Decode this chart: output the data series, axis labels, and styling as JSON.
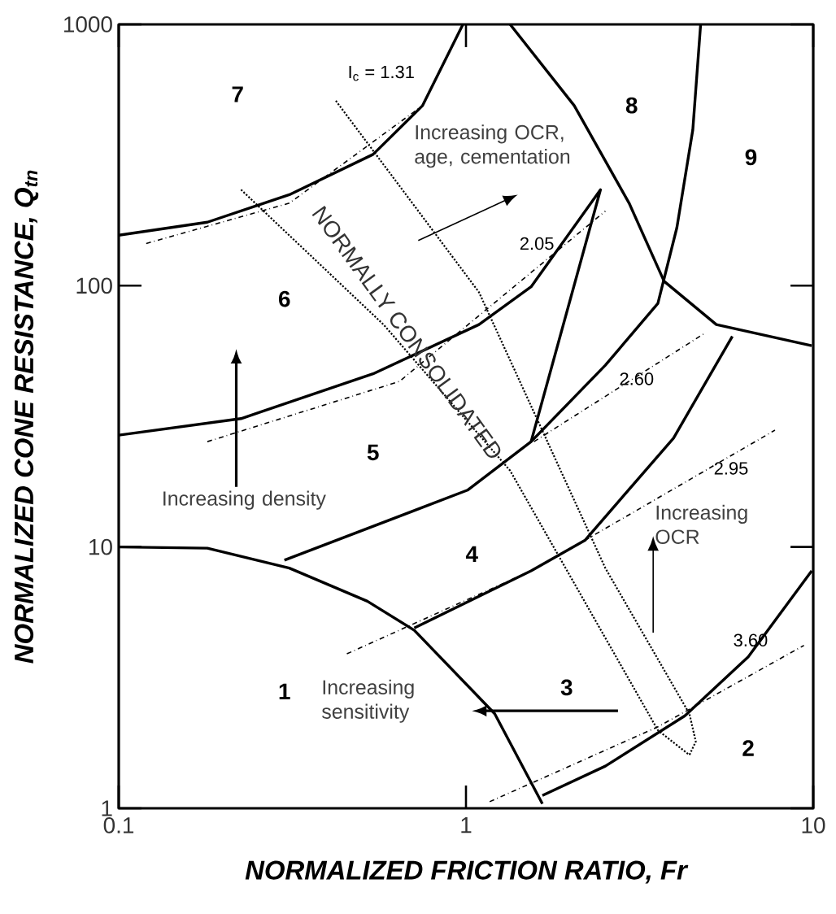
{
  "chart_data": {
    "type": "line",
    "log": "xy",
    "marker": "none",
    "xlabel": "NORMALIZED FRICTION RATIO, Fr",
    "ylabel": "NORMALIZED CONE RESISTANCE, Q$_{tn}$",
    "xlim": [
      0.1,
      10
    ],
    "ylim": [
      1,
      1000
    ],
    "xticks": [
      0.1,
      1,
      10
    ],
    "yticks": [
      1,
      10,
      100,
      1000
    ],
    "series": [
      {
        "color": "#000000",
        "line_style": "solid",
        "x": [
          0.1,
          0.18,
          0.31,
          0.52,
          0.71,
          1.21,
          1.66
        ],
        "values": [
          10,
          9.9,
          8.3,
          6.2,
          4.8,
          2.3,
          1.04
        ]
      },
      {
        "color": "#000000",
        "line_style": "solid",
        "x": [
          1.66,
          2.52,
          4.27,
          6.5,
          9.9
        ],
        "values": [
          1.12,
          1.45,
          2.26,
          3.8,
          8.1
        ]
      },
      {
        "color": "#000000",
        "line_style": "solid",
        "x": [
          0.1,
          0.18,
          0.31,
          0.54,
          0.75,
          0.98
        ],
        "values": [
          156,
          175,
          223,
          318,
          489,
          1000
        ]
      },
      {
        "color": "#000000",
        "line_style": "solid",
        "x": [
          0.1,
          0.225,
          0.54,
          1.09,
          1.54,
          2.44,
          1.54
        ],
        "values": [
          26.8,
          31,
          46,
          71,
          99,
          233,
          25.3
        ]
      },
      {
        "color": "#000000",
        "line_style": "solid",
        "x": [
          0.3,
          1.01,
          1.54,
          2.52,
          3.57,
          4.05,
          4.5,
          4.74
        ],
        "values": [
          8.9,
          16.5,
          25.3,
          49.6,
          85.5,
          167,
          395,
          1000
        ]
      },
      {
        "color": "#000000",
        "line_style": "solid",
        "x": [
          1.34,
          2.05,
          2.95,
          3.72,
          5.26,
          9.9
        ],
        "values": [
          1000,
          489,
          207,
          104,
          71,
          58.9
        ]
      },
      {
        "color": "#000000",
        "line_style": "solid",
        "x": [
          0.71,
          1.54,
          2.2,
          3.96,
          5.85
        ],
        "values": [
          4.9,
          8.1,
          10.6,
          26.1,
          64
        ]
      },
      {
        "color": "#000000",
        "line_style": "dashed",
        "x": [
          0.12,
          0.31,
          0.75
        ],
        "values": [
          145,
          207,
          489
        ]
      },
      {
        "color": "#000000",
        "line_style": "dashed",
        "x": [
          0.18,
          0.643,
          2.52
        ],
        "values": [
          25.3,
          43,
          193
        ]
      },
      {
        "color": "#000000",
        "line_style": "dashed",
        "x": [
          1.57,
          4.89
        ],
        "values": [
          25.3,
          66
        ]
      },
      {
        "color": "#000000",
        "line_style": "dashed",
        "x": [
          0.454,
          1.54,
          2.2,
          7.76
        ],
        "values": [
          3.9,
          8.1,
          10.6,
          28
        ]
      },
      {
        "color": "#000000",
        "line_style": "dashed",
        "x": [
          1.17,
          3.57,
          9.4
        ],
        "values": [
          1.06,
          2.05,
          4.2
        ]
      },
      {
        "color": "#000000",
        "line_style": "dotted",
        "x": [
          0.225,
          0.579,
          1.34,
          3.57,
          4.4
        ],
        "values": [
          233,
          71,
          19.6,
          1.99,
          1.6
        ]
      },
      {
        "color": "#000000",
        "line_style": "dotted",
        "x": [
          0.422,
          1.09,
          2.52,
          4.4,
          4.59,
          4.4
        ],
        "values": [
          510,
          94.4,
          8.3,
          2.3,
          1.8,
          1.6
        ]
      }
    ],
    "annotations": [
      "1",
      "2",
      "3",
      "4",
      "5",
      "6",
      "7",
      "8",
      "9",
      "I$_{c}$ = 1.31",
      "2.05",
      "2.60",
      "2.95",
      "3.60",
      "Increasing OCR, age, cementation",
      "NORMALLY CONSOLIDATED",
      "Increasing density",
      "Increasing OCR",
      "Increasing sensitivity"
    ]
  }
}
